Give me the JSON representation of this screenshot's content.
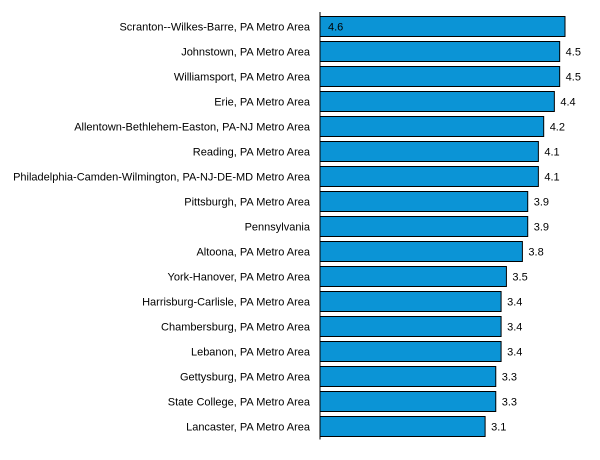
{
  "chart_data": {
    "type": "bar",
    "orientation": "horizontal",
    "categories": [
      "Scranton--Wilkes-Barre, PA Metro Area",
      "Johnstown, PA Metro Area",
      "Williamsport, PA Metro Area",
      "Erie, PA Metro Area",
      "Allentown-Bethlehem-Easton, PA-NJ Metro Area",
      "Reading, PA Metro Area",
      "Philadelphia-Camden-Wilmington, PA-NJ-DE-MD Metro Area",
      "Pittsburgh, PA Metro Area",
      "Pennsylvania",
      "Altoona, PA Metro Area",
      "York-Hanover, PA Metro Area",
      "Harrisburg-Carlisle, PA Metro Area",
      "Chambersburg, PA Metro Area",
      "Lebanon, PA Metro Area",
      "Gettysburg, PA Metro Area",
      "State College, PA Metro Area",
      "Lancaster, PA Metro Area"
    ],
    "values": [
      4.6,
      4.5,
      4.5,
      4.4,
      4.2,
      4.1,
      4.1,
      3.9,
      3.9,
      3.8,
      3.5,
      3.4,
      3.4,
      3.4,
      3.3,
      3.3,
      3.1
    ],
    "value_labels": [
      "4.6",
      "4.5",
      "4.5",
      "4.4",
      "4.2",
      "4.1",
      "4.1",
      "3.9",
      "3.9",
      "3.8",
      "3.5",
      "3.4",
      "3.4",
      "3.4",
      "3.3",
      "3.3",
      "3.1"
    ],
    "xlim": [
      0,
      4.6
    ],
    "grid": false,
    "bar_color": "#0b94d6"
  }
}
